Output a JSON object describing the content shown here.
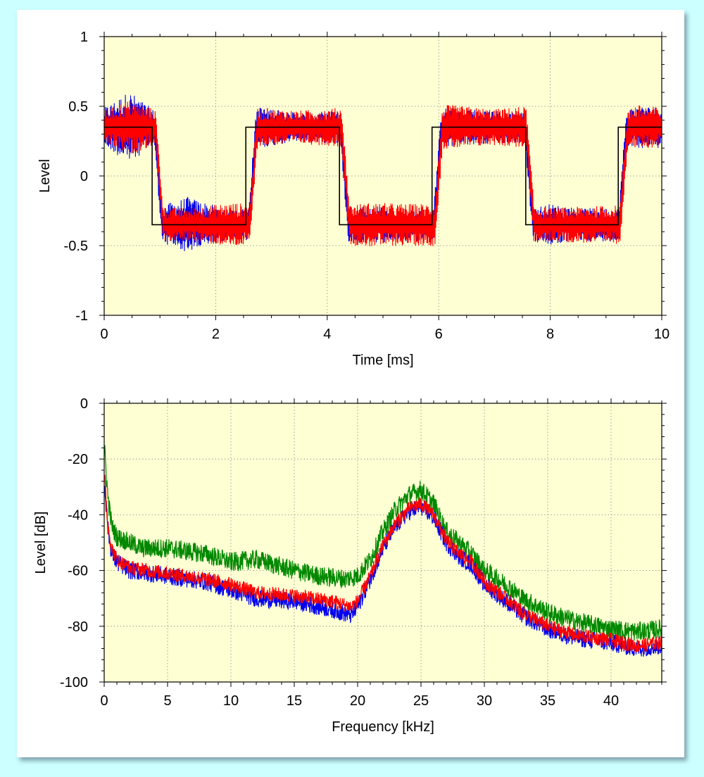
{
  "colors": {
    "page_background": "#ccffff",
    "plot_background": "#ffffd4",
    "blue": "#0000ee",
    "red": "#ff0000",
    "green": "#008800",
    "black": "#000000"
  },
  "chart_data": [
    {
      "type": "line",
      "xlabel": "Time [ms]",
      "ylabel": "Level",
      "xlim": [
        0,
        10
      ],
      "ylim": [
        -1,
        1
      ],
      "xticks": [
        0,
        2,
        4,
        6,
        8,
        10
      ],
      "xtick_labels": [
        "0",
        "2",
        "4",
        "6",
        "8",
        "10"
      ],
      "yticks": [
        -1,
        -0.5,
        0,
        0.5,
        1
      ],
      "ytick_labels": [
        "-1",
        "-0.5",
        "0",
        "0.5",
        "1"
      ],
      "grid": true,
      "series": [
        {
          "color": "blue",
          "kind": "noisy square wave",
          "level": 0.35,
          "transitions_ms": [
            0.97,
            2.66,
            4.31,
            5.98,
            7.62,
            9.3
          ],
          "noise_envelope": [
            [
              0.0,
              0.14
            ],
            [
              0.45,
              0.26
            ],
            [
              0.9,
              0.12
            ],
            [
              1.5,
              0.2
            ],
            [
              2.3,
              0.1
            ],
            [
              2.8,
              0.15
            ],
            [
              3.5,
              0.1
            ],
            [
              4.2,
              0.12
            ],
            [
              4.8,
              0.14
            ],
            [
              5.5,
              0.12
            ],
            [
              6.2,
              0.14
            ],
            [
              7.0,
              0.12
            ],
            [
              7.5,
              0.11
            ],
            [
              8.0,
              0.15
            ],
            [
              8.5,
              0.12
            ],
            [
              9.2,
              0.12
            ],
            [
              9.6,
              0.15
            ],
            [
              10.0,
              0.15
            ]
          ]
        },
        {
          "color": "red",
          "kind": "noisy square wave",
          "level": 0.35,
          "transitions_ms": [
            0.99,
            2.68,
            4.33,
            6.0,
            7.64,
            9.32
          ],
          "noise_envelope": [
            [
              0.0,
              0.12
            ],
            [
              0.45,
              0.2
            ],
            [
              0.9,
              0.13
            ],
            [
              1.5,
              0.12
            ],
            [
              2.3,
              0.16
            ],
            [
              2.8,
              0.14
            ],
            [
              3.5,
              0.12
            ],
            [
              4.2,
              0.14
            ],
            [
              4.8,
              0.16
            ],
            [
              5.5,
              0.15
            ],
            [
              6.2,
              0.16
            ],
            [
              7.0,
              0.13
            ],
            [
              7.5,
              0.15
            ],
            [
              8.0,
              0.12
            ],
            [
              8.5,
              0.13
            ],
            [
              9.2,
              0.14
            ],
            [
              9.6,
              0.16
            ],
            [
              10.0,
              0.14
            ]
          ]
        },
        {
          "color": "black",
          "kind": "square wave",
          "level": 0.35,
          "start_high": true,
          "transitions_ms": [
            0.86,
            2.54,
            4.22,
            5.88,
            7.56,
            9.22
          ]
        }
      ]
    },
    {
      "type": "line",
      "xlabel": "Frequency [kHz]",
      "ylabel": "Level [dB]",
      "xlim": [
        0,
        44
      ],
      "ylim": [
        -100,
        0
      ],
      "xticks": [
        0,
        5,
        10,
        15,
        20,
        25,
        30,
        35,
        40
      ],
      "xtick_labels": [
        "0",
        "5",
        "10",
        "15",
        "20",
        "25",
        "30",
        "35",
        "40"
      ],
      "yticks": [
        -100,
        -80,
        -60,
        -40,
        -20,
        0
      ],
      "ytick_labels": [
        "-100",
        "-80",
        "-60",
        "-40",
        "-20",
        "0"
      ],
      "grid": true,
      "series": [
        {
          "color": "green",
          "points": [
            [
              0.05,
              -18
            ],
            [
              0.3,
              -34
            ],
            [
              0.6,
              -44
            ],
            [
              1,
              -48
            ],
            [
              2,
              -50
            ],
            [
              3,
              -52
            ],
            [
              5,
              -52
            ],
            [
              8,
              -54
            ],
            [
              10,
              -57
            ],
            [
              12,
              -56
            ],
            [
              15,
              -60
            ],
            [
              17,
              -62
            ],
            [
              19,
              -63
            ],
            [
              20,
              -62
            ],
            [
              21,
              -56
            ],
            [
              22,
              -46
            ],
            [
              23,
              -38
            ],
            [
              24,
              -33
            ],
            [
              25,
              -31
            ],
            [
              26,
              -36
            ],
            [
              27,
              -46
            ],
            [
              28,
              -50
            ],
            [
              29,
              -54
            ],
            [
              30,
              -60
            ],
            [
              32,
              -66
            ],
            [
              33,
              -70
            ],
            [
              35,
              -75
            ],
            [
              37,
              -78
            ],
            [
              40,
              -81
            ],
            [
              42,
              -82
            ],
            [
              44,
              -81
            ]
          ],
          "noise": 3.5
        },
        {
          "color": "blue",
          "points": [
            [
              0.05,
              -30
            ],
            [
              0.3,
              -45
            ],
            [
              0.6,
              -54
            ],
            [
              1,
              -57
            ],
            [
              2,
              -60
            ],
            [
              5,
              -62
            ],
            [
              8,
              -64
            ],
            [
              10,
              -67
            ],
            [
              12,
              -70
            ],
            [
              15,
              -71
            ],
            [
              18,
              -74
            ],
            [
              19.5,
              -76
            ],
            [
              20,
              -73
            ],
            [
              21,
              -63
            ],
            [
              22,
              -52
            ],
            [
              23,
              -44
            ],
            [
              24,
              -39
            ],
            [
              25,
              -37
            ],
            [
              26,
              -41
            ],
            [
              27,
              -50
            ],
            [
              28,
              -55
            ],
            [
              29,
              -58
            ],
            [
              30,
              -65
            ],
            [
              32,
              -72
            ],
            [
              33,
              -76
            ],
            [
              35,
              -81
            ],
            [
              37,
              -84
            ],
            [
              40,
              -86
            ],
            [
              42,
              -88
            ],
            [
              44,
              -87
            ]
          ],
          "noise": 3.2
        },
        {
          "color": "red",
          "points": [
            [
              0.05,
              -28
            ],
            [
              0.3,
              -44
            ],
            [
              0.6,
              -52
            ],
            [
              1,
              -56
            ],
            [
              2,
              -59
            ],
            [
              5,
              -61
            ],
            [
              8,
              -63
            ],
            [
              10,
              -65
            ],
            [
              12,
              -68
            ],
            [
              15,
              -69
            ],
            [
              18,
              -71
            ],
            [
              19.5,
              -73
            ],
            [
              20,
              -71
            ],
            [
              21,
              -62
            ],
            [
              22,
              -51
            ],
            [
              23,
              -43
            ],
            [
              24,
              -38
            ],
            [
              25,
              -36
            ],
            [
              26,
              -40
            ],
            [
              27,
              -49
            ],
            [
              28,
              -54
            ],
            [
              29,
              -57
            ],
            [
              30,
              -64
            ],
            [
              32,
              -71
            ],
            [
              33,
              -75
            ],
            [
              35,
              -80
            ],
            [
              37,
              -83
            ],
            [
              40,
              -85
            ],
            [
              42,
              -87
            ],
            [
              44,
              -86
            ]
          ],
          "noise": 2.6
        }
      ]
    }
  ]
}
